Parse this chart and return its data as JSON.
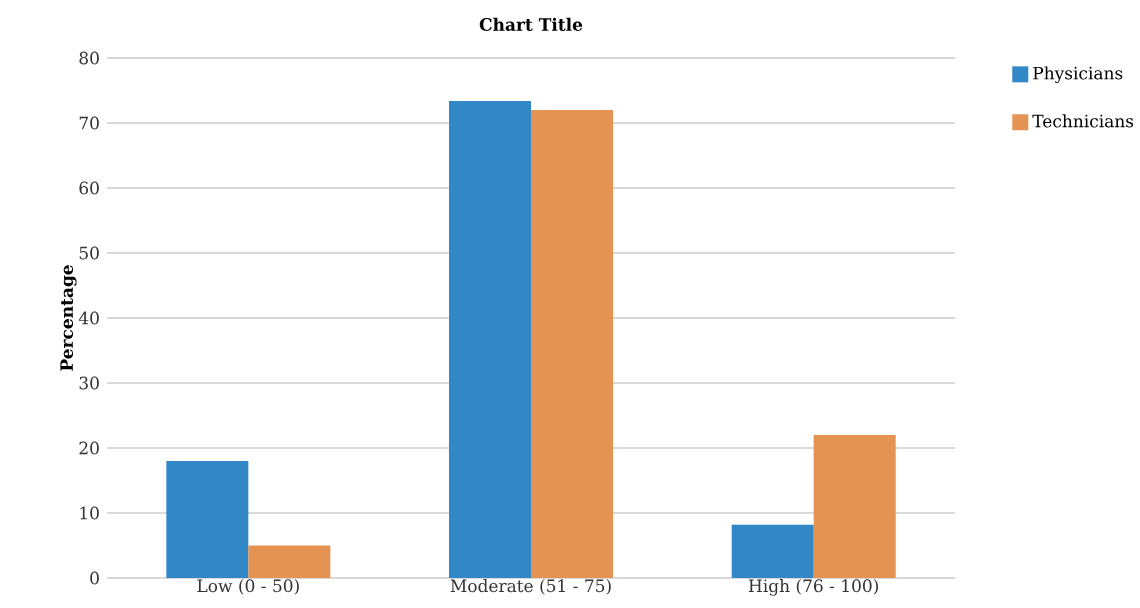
{
  "chart_data": {
    "type": "bar",
    "title": "Chart Title",
    "ylabel": "Percentage",
    "categories": [
      "Low (0 - 50)",
      "Moderate (51 - 75)",
      "High (76 - 100)"
    ],
    "series": [
      {
        "name": "Physicians",
        "color": "#3287c6",
        "values": [
          18,
          73.4,
          8.2
        ]
      },
      {
        "name": "Technicians",
        "color": "#e59352",
        "values": [
          5,
          72,
          22
        ]
      }
    ],
    "ylim": [
      0,
      80
    ],
    "yticks": [
      0,
      10,
      20,
      30,
      40,
      50,
      60,
      70,
      80
    ],
    "grid": "y",
    "legend": "top right"
  }
}
